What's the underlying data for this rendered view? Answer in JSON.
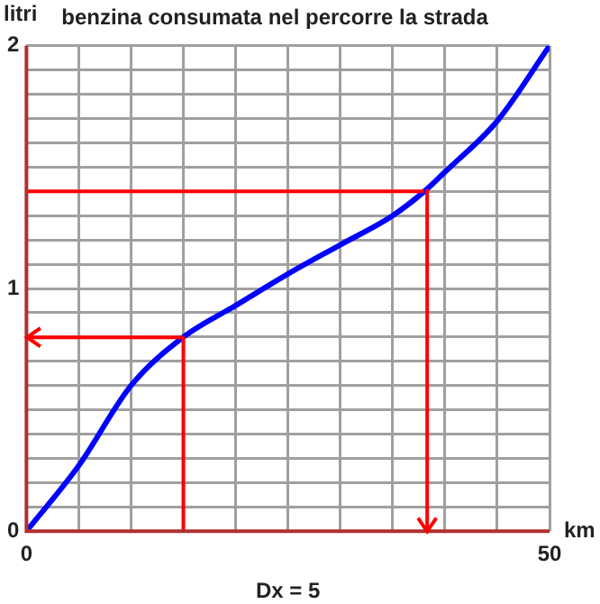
{
  "chart_data": {
    "type": "line",
    "title": "benzina consumata nel percorre la strada",
    "xlabel": "km",
    "ylabel": "litri",
    "annotations": [
      "Dx = 5"
    ],
    "x": [
      0,
      5,
      10,
      15,
      20,
      25,
      30,
      35,
      38.3,
      40,
      45,
      50
    ],
    "xlim": [
      0,
      50
    ],
    "ylim": [
      0,
      2
    ],
    "xticks": [
      0,
      {
        "value": 5,
        "label": null
      },
      {
        "value": 10,
        "label": null
      },
      {
        "value": 15,
        "label": null
      },
      {
        "value": 20,
        "label": null
      },
      {
        "value": 25,
        "label": null
      },
      {
        "value": 30,
        "label": null
      },
      {
        "value": 35,
        "label": null
      },
      {
        "value": 40,
        "label": null
      },
      {
        "value": 45,
        "label": null
      },
      50
    ],
    "yticks": [
      0,
      {
        "value": 0.1,
        "label": null
      },
      {
        "value": 0.2,
        "label": null
      },
      {
        "value": 0.3,
        "label": null
      },
      {
        "value": 0.4,
        "label": null
      },
      {
        "value": 0.5,
        "label": null
      },
      {
        "value": 0.6,
        "label": null
      },
      {
        "value": 0.7,
        "label": null
      },
      {
        "value": 0.8,
        "label": null
      },
      {
        "value": 0.9,
        "label": null
      },
      1,
      {
        "value": 1.1,
        "label": null
      },
      {
        "value": 1.2,
        "label": null
      },
      {
        "value": 1.3,
        "label": null
      },
      {
        "value": 1.4,
        "label": null
      },
      {
        "value": 1.5,
        "label": null
      },
      {
        "value": 1.6,
        "label": null
      },
      {
        "value": 1.7,
        "label": null
      },
      {
        "value": 1.8,
        "label": null
      },
      {
        "value": 1.9,
        "label": null
      },
      2
    ],
    "grid": true,
    "marker": "none",
    "line_style": "solid",
    "series": [
      {
        "color": "#0000ff",
        "values": [
          0,
          0.27,
          0.6,
          0.8,
          0.93,
          1.06,
          1.18,
          1.3,
          1.41,
          1.48,
          1.69,
          2
        ]
      }
    ],
    "ref_lines": [
      {
        "axis": "x",
        "value": 15,
        "color": "#ff0000"
      },
      {
        "axis": "y",
        "value": 0.8,
        "color": "#ff0000"
      },
      {
        "axis": "y",
        "value": 1.4,
        "color": "#ff0000"
      },
      {
        "axis": "x",
        "value": 38.3,
        "color": "#ff0000"
      }
    ]
  }
}
